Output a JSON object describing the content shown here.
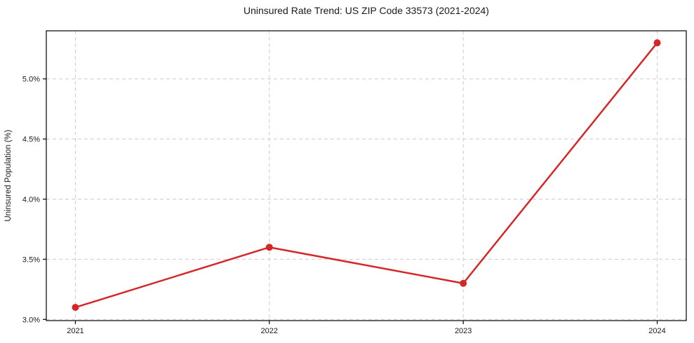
{
  "chart_data": {
    "type": "line",
    "title": "Uninsured Rate Trend: US ZIP Code 33573 (2021-2024)",
    "xlabel": "",
    "ylabel": "Uninsured Population (%)",
    "x": [
      2021,
      2022,
      2023,
      2024
    ],
    "categories": [
      "2021",
      "2022",
      "2023",
      "2024"
    ],
    "series": [
      {
        "name": "Uninsured Population (%)",
        "values": [
          3.1,
          3.6,
          3.3,
          5.3
        ],
        "color": "#d62728",
        "marker": "circle"
      }
    ],
    "xticks": [
      2021,
      2022,
      2023,
      2024
    ],
    "xtick_labels": [
      "2021",
      "2022",
      "2023",
      "2024"
    ],
    "yticks": [
      3.0,
      3.5,
      4.0,
      4.5,
      5.0
    ],
    "ytick_labels": [
      "3.0%",
      "3.5%",
      "4.0%",
      "4.5%",
      "5.0%"
    ],
    "xlim": [
      2020.85,
      2024.15
    ],
    "ylim": [
      2.99,
      5.4
    ],
    "grid": true,
    "grid_style": "dashed",
    "grid_color": "#cccccc",
    "axis_color": "#000000",
    "line_width": 2.5,
    "marker_radius": 5,
    "legend": false
  }
}
